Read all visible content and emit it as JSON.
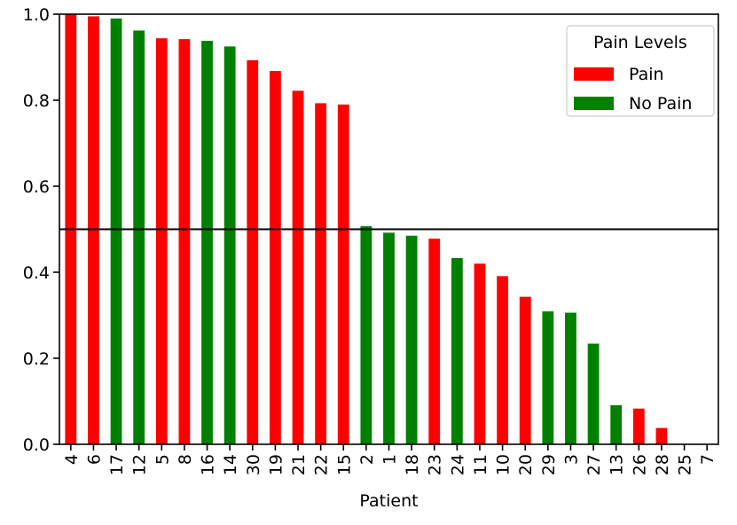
{
  "chart_data": {
    "type": "bar",
    "xlabel": "Patient",
    "ylabel": "",
    "ylim": [
      0,
      1.0
    ],
    "yticks": [
      "0.0",
      "0.2",
      "0.4",
      "0.6",
      "0.8",
      "1.0"
    ],
    "reference_line": 0.5,
    "categories": [
      "4",
      "6",
      "17",
      "12",
      "5",
      "8",
      "16",
      "14",
      "30",
      "19",
      "21",
      "22",
      "15",
      "2",
      "1",
      "18",
      "23",
      "24",
      "11",
      "10",
      "20",
      "29",
      "3",
      "27",
      "13",
      "26",
      "28",
      "25",
      "7"
    ],
    "values": [
      0.999,
      0.995,
      0.99,
      0.962,
      0.944,
      0.942,
      0.938,
      0.925,
      0.893,
      0.868,
      0.822,
      0.793,
      0.79,
      0.507,
      0.492,
      0.485,
      0.478,
      0.433,
      0.42,
      0.391,
      0.343,
      0.309,
      0.306,
      0.234,
      0.091,
      0.083,
      0.038,
      0.0,
      0.0
    ],
    "classes": [
      "Pain",
      "Pain",
      "No Pain",
      "No Pain",
      "Pain",
      "Pain",
      "No Pain",
      "No Pain",
      "Pain",
      "Pain",
      "Pain",
      "Pain",
      "Pain",
      "No Pain",
      "No Pain",
      "No Pain",
      "Pain",
      "No Pain",
      "Pain",
      "Pain",
      "Pain",
      "No Pain",
      "No Pain",
      "No Pain",
      "No Pain",
      "Pain",
      "Pain",
      "Pain",
      "Pain"
    ],
    "legend": {
      "title": "Pain Levels",
      "placement": "top-right",
      "entries": [
        {
          "label": "Pain",
          "color": "#ff0000"
        },
        {
          "label": "No Pain",
          "color": "#008000"
        }
      ]
    }
  }
}
